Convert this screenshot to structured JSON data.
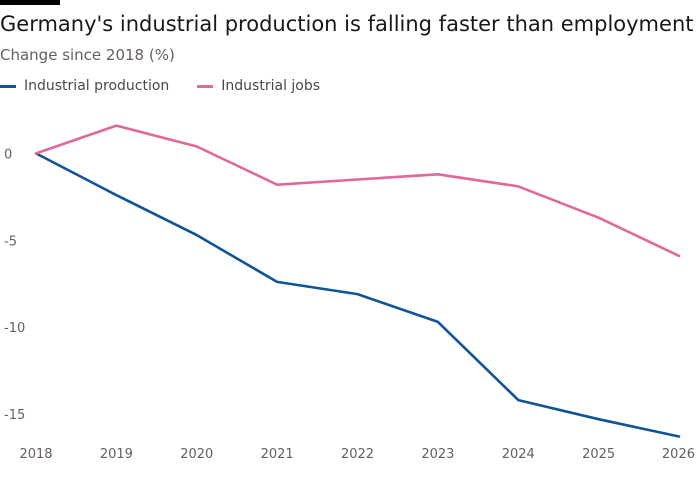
{
  "colors": {
    "background": "#ffffff",
    "production": "#0f5499",
    "jobs": "#e06999",
    "axis": "#8c8680"
  },
  "chart_data": {
    "type": "line",
    "title": "Germany's industrial production is falling faster than employment",
    "subtitle": "Change since 2018 (%)",
    "xlabel": "",
    "ylabel": "",
    "x": [
      2018,
      2019,
      2020,
      2021,
      2022,
      2023,
      2024,
      2025,
      2026
    ],
    "x_ticks": [
      "2018",
      "2019",
      "2020",
      "2021",
      "2022",
      "2023",
      "2024",
      "2025",
      "2026"
    ],
    "y_ticks": [
      0,
      -5,
      -10,
      -15
    ],
    "y_tick_labels": [
      "0",
      "-5",
      "-10",
      "-15"
    ],
    "ylim": [
      -16.5,
      2.5
    ],
    "xlim": [
      2018,
      2026
    ],
    "grid": false,
    "legend_position": "top-left",
    "series": [
      {
        "name": "Industrial production",
        "color": "#0f5499",
        "values": [
          0,
          -2.4,
          -4.7,
          -7.4,
          -8.1,
          -9.7,
          -14.2,
          -15.3,
          -16.3
        ]
      },
      {
        "name": "Industrial jobs",
        "color": "#e06999",
        "values": [
          0,
          1.6,
          0.4,
          -1.8,
          -1.5,
          -1.2,
          -1.9,
          -3.7,
          -5.9
        ]
      }
    ]
  }
}
